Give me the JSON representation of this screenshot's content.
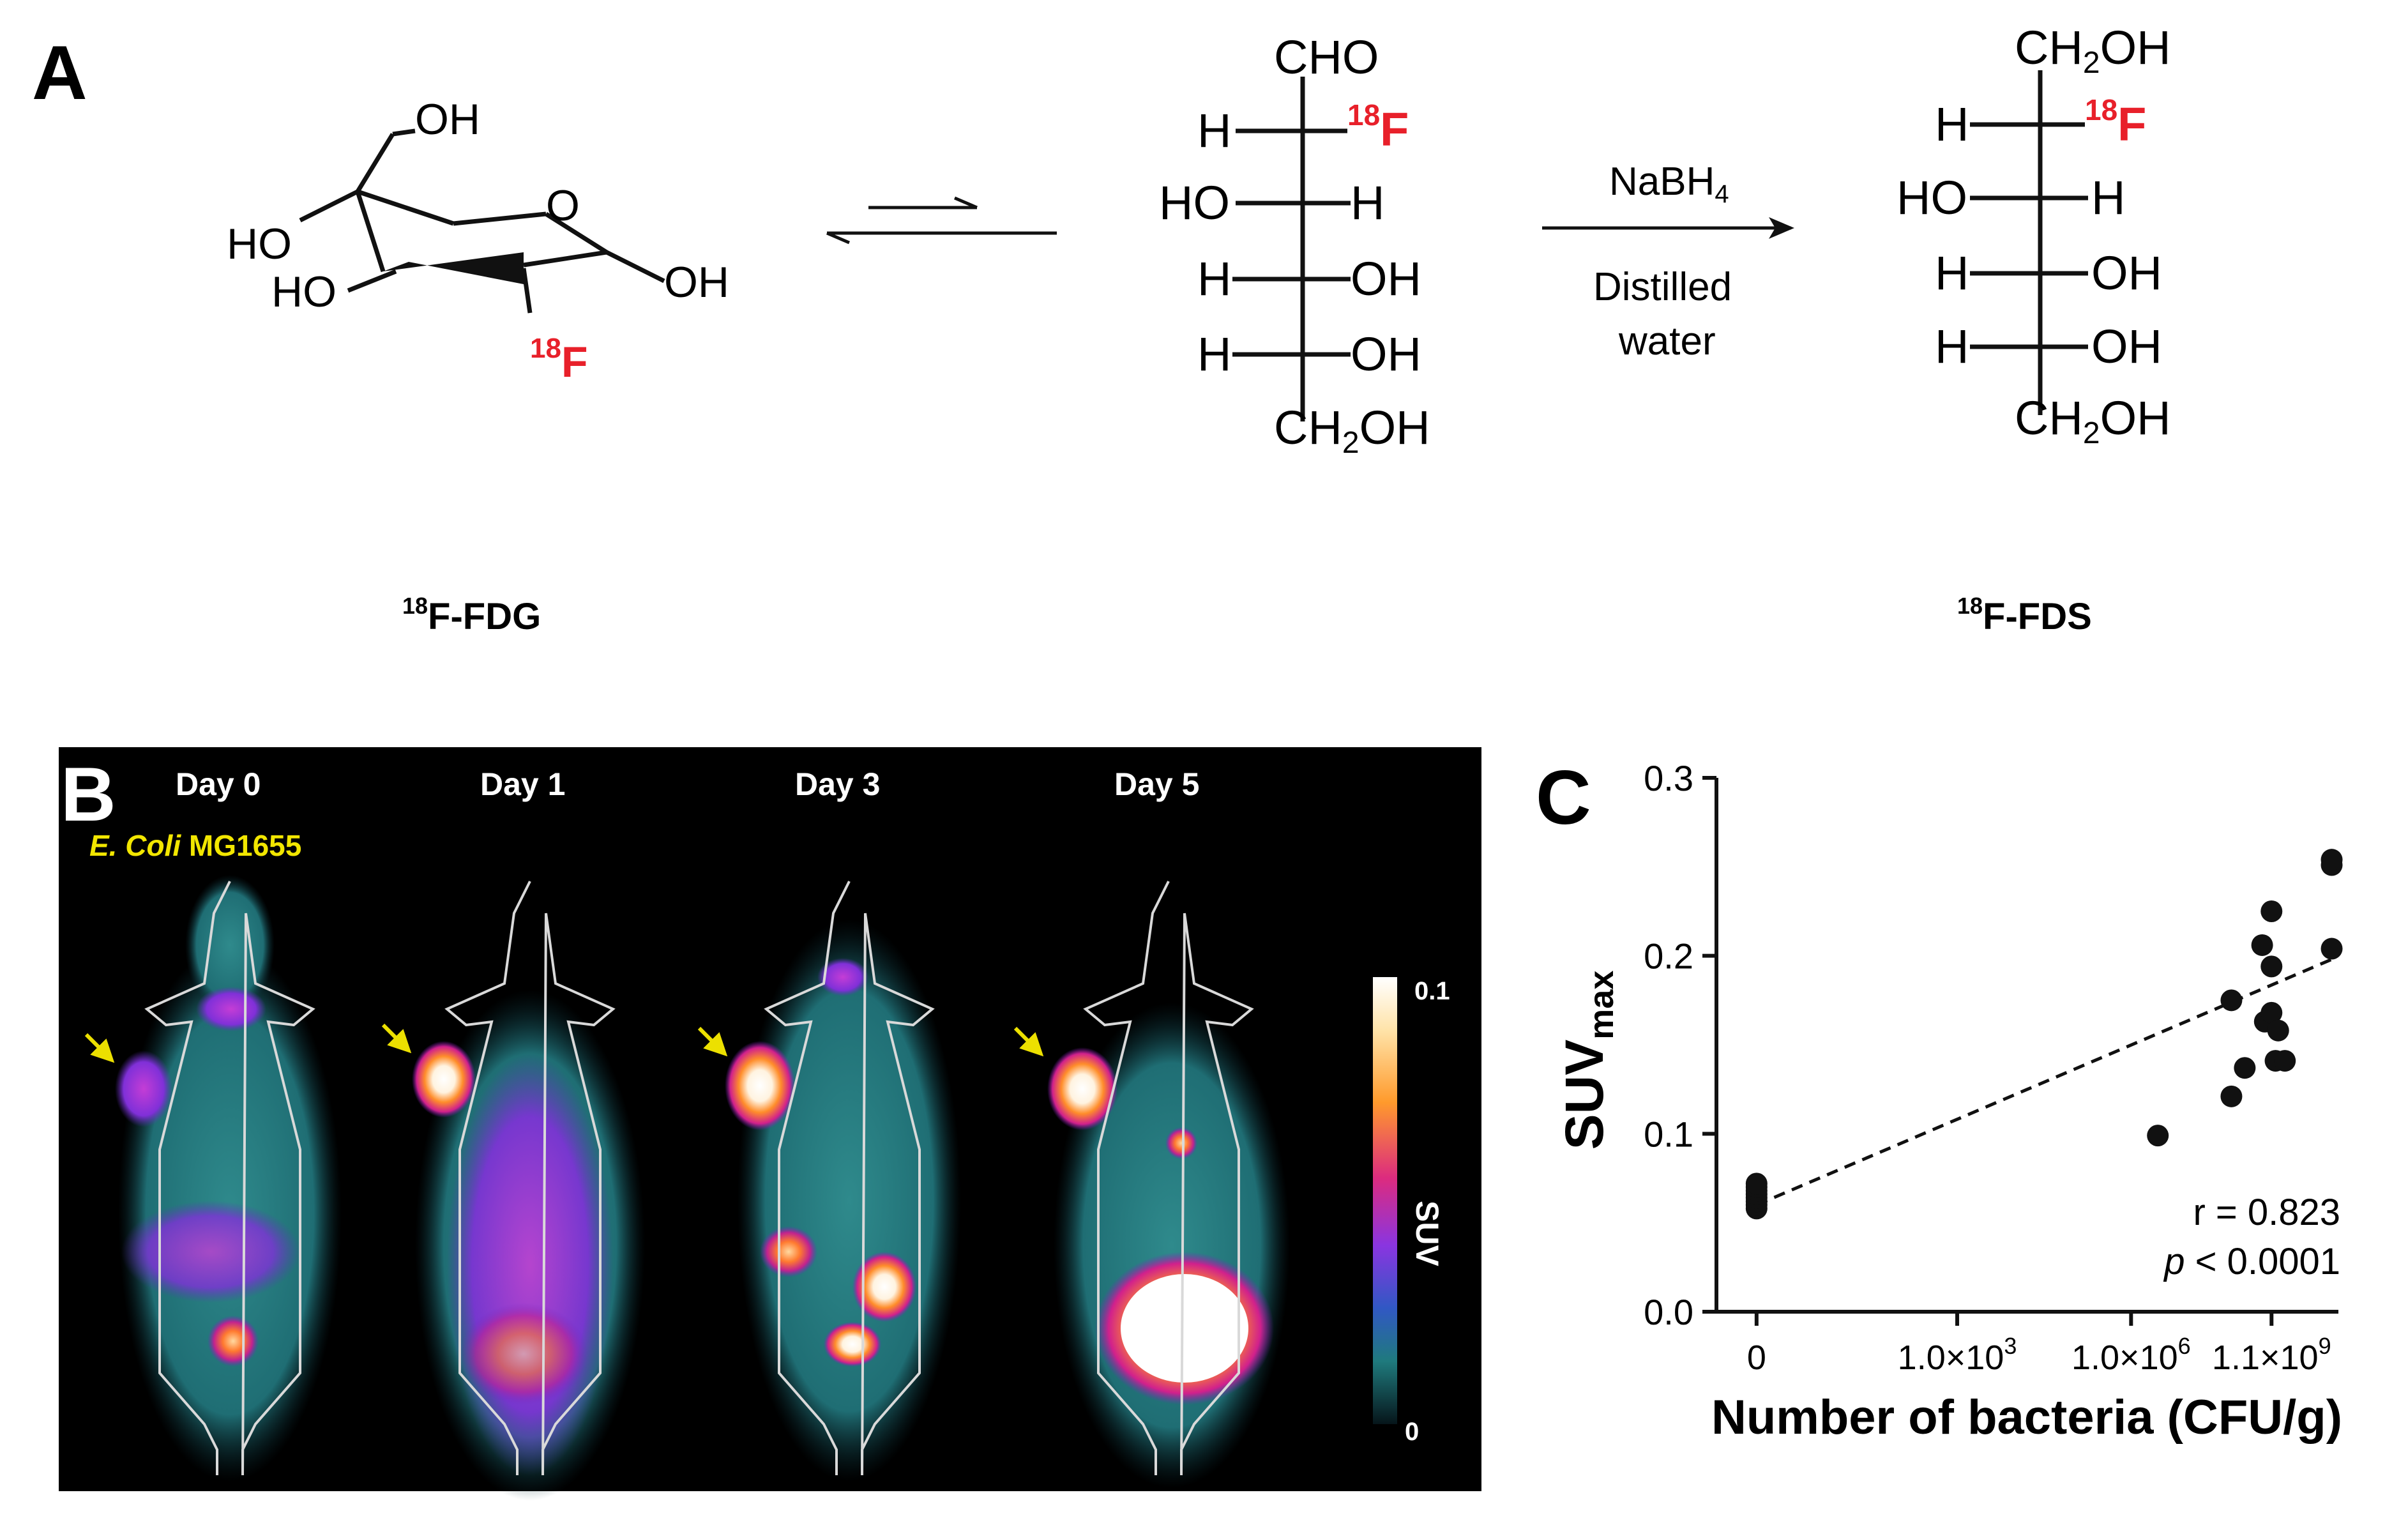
{
  "panels": {
    "a": {
      "label": "A"
    },
    "b": {
      "label": "B"
    },
    "c": {
      "label": "C"
    }
  },
  "colors": {
    "red_label": "#e8202a",
    "arrow_yellow": "#ece000",
    "text_yellow": "#f2e600"
  },
  "scheme": {
    "fdg": {
      "name_sup": "18",
      "name_rest": "F-FDG",
      "substituents": {
        "oh_top": "OH",
        "ring_o": "O",
        "ho_left": "HO",
        "ho_mid": "HO",
        "oh_right": "OH"
      },
      "label_sup": "18",
      "label_f": "F"
    },
    "open_chain": {
      "top_group": "CHO",
      "row1": {
        "left": "H",
        "right_sup": "18",
        "right_f": "F"
      },
      "row2": {
        "left": "HO",
        "right": "H"
      },
      "row3": {
        "left": "H",
        "right": "OH"
      },
      "row4": {
        "left": "H",
        "right": "OH"
      },
      "bottom": {
        "pre": "CH",
        "sub": "2",
        "post": "OH"
      }
    },
    "reaction": {
      "reagent_pre": "NaBH",
      "reagent_sub": "4",
      "cond_line1": "Distilled",
      "cond_line2": "water"
    },
    "fds": {
      "name_sup": "18",
      "name_rest": "F-FDS",
      "top": {
        "pre": "CH",
        "sub": "2",
        "post": "OH"
      },
      "row1": {
        "left": "H",
        "right_sup": "18",
        "right_f": "F"
      },
      "row2": {
        "left": "HO",
        "right": "H"
      },
      "row3": {
        "left": "H",
        "right": "OH"
      },
      "row4": {
        "left": "H",
        "right": "OH"
      },
      "bottom": {
        "pre": "CH",
        "sub": "2",
        "post": "OH"
      }
    }
  },
  "pet": {
    "days": [
      "Day 0",
      "Day 1",
      "Day 3",
      "Day 5"
    ],
    "strain_italic": "E. Coli",
    "strain_rest": " MG1655",
    "colorbar": {
      "max": "0.1",
      "min": "0",
      "label": "SUV"
    }
  },
  "chart_data": {
    "type": "scatter",
    "title": "",
    "ylabel_main": "SUV",
    "ylabel_sub": "max",
    "xlabel": "Number of bacteria (CFU/g)",
    "ylim": [
      0.0,
      0.3
    ],
    "yticks": [
      0.0,
      0.1,
      0.2,
      0.3
    ],
    "ytick_labels": [
      "0.0",
      "0.1",
      "0.2",
      "0.3"
    ],
    "xlim": [
      -0.3,
      4.35
    ],
    "xticks": [
      0,
      1.5,
      2.8,
      3.85
    ],
    "xtick_labels": [
      {
        "value": 0,
        "plain": "0",
        "exp": ""
      },
      {
        "value": 1.5,
        "plain": "1.0×10",
        "exp": "3"
      },
      {
        "value": 2.8,
        "plain": "1.0×10",
        "exp": "6"
      },
      {
        "value": 3.85,
        "plain": "1.1×10",
        "exp": "9"
      }
    ],
    "points": [
      {
        "x": 0,
        "y": 0.058
      },
      {
        "x": 0,
        "y": 0.06
      },
      {
        "x": 0,
        "y": 0.062
      },
      {
        "x": 0,
        "y": 0.064
      },
      {
        "x": 0,
        "y": 0.066
      },
      {
        "x": 0,
        "y": 0.068
      },
      {
        "x": 0,
        "y": 0.07
      },
      {
        "x": 0,
        "y": 0.072
      },
      {
        "x": 3.0,
        "y": 0.099
      },
      {
        "x": 3.55,
        "y": 0.121
      },
      {
        "x": 3.65,
        "y": 0.137
      },
      {
        "x": 3.55,
        "y": 0.175
      },
      {
        "x": 3.8,
        "y": 0.163
      },
      {
        "x": 3.85,
        "y": 0.168
      },
      {
        "x": 3.9,
        "y": 0.158
      },
      {
        "x": 3.88,
        "y": 0.141
      },
      {
        "x": 3.95,
        "y": 0.141
      },
      {
        "x": 3.78,
        "y": 0.206
      },
      {
        "x": 3.85,
        "y": 0.194
      },
      {
        "x": 3.85,
        "y": 0.225
      },
      {
        "x": 4.3,
        "y": 0.204
      },
      {
        "x": 4.3,
        "y": 0.251
      },
      {
        "x": 4.3,
        "y": 0.254
      }
    ],
    "fit_line": {
      "x1": 0,
      "y1": 0.06,
      "x2": 4.3,
      "y2": 0.198
    },
    "annotation_r": "r = 0.823",
    "annotation_p_italic": "p",
    "annotation_p_rest": " < 0.0001"
  }
}
